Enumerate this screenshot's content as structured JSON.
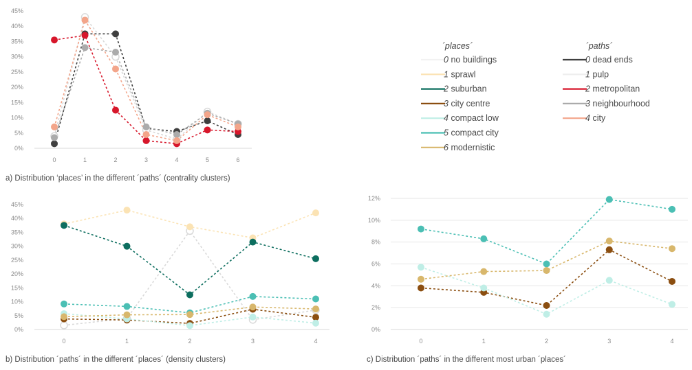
{
  "colors": {
    "no_buildings": "#f2f2f2",
    "sprawl": "#fbe3b4",
    "suburban": "#0d6e5f",
    "city_centre": "#8b4e10",
    "compact_low": "#bfeee6",
    "compact_city": "#4bbfb4",
    "modernistic": "#d8b76c",
    "dead_ends": "#3f3f3f",
    "pulp": "#eeeeee",
    "metropolitan": "#d7172b",
    "neighbourhood": "#ababab",
    "city": "#f3a58a"
  },
  "legend": {
    "places_title": "´places´",
    "paths_title": "´paths´",
    "places": [
      {
        "num": "0",
        "label": "no buildings",
        "color": "#f2f2f2"
      },
      {
        "num": "1",
        "label": "sprawl",
        "color": "#fbe3b4"
      },
      {
        "num": "2",
        "label": "suburban",
        "color": "#0d6e5f"
      },
      {
        "num": "3",
        "label": "city centre",
        "color": "#8b4e10"
      },
      {
        "num": "4",
        "label": "compact low",
        "color": "#bfeee6"
      },
      {
        "num": "5",
        "label": "compact city",
        "color": "#4bbfb4"
      },
      {
        "num": "6",
        "label": "modernistic",
        "color": "#d8b76c"
      }
    ],
    "paths": [
      {
        "num": "0",
        "label": "dead ends",
        "color": "#3f3f3f"
      },
      {
        "num": "1",
        "label": "pulp",
        "color": "#eeeeee"
      },
      {
        "num": "2",
        "label": "metropolitan",
        "color": "#d7172b"
      },
      {
        "num": "3",
        "label": "neighbourhood",
        "color": "#ababab"
      },
      {
        "num": "4",
        "label": "city",
        "color": "#f3a58a"
      }
    ]
  },
  "chart_data": [
    {
      "id": "a",
      "type": "line",
      "title": "a) Distribution ‘places’ in the different ´paths´ (centrality clusters)",
      "x": [
        0,
        1,
        2,
        3,
        4,
        5,
        6
      ],
      "ylim": [
        0,
        45
      ],
      "yticks": [
        0,
        5,
        10,
        15,
        20,
        25,
        30,
        35,
        40,
        45
      ],
      "ytick_labels": [
        "0%",
        "5%",
        "10%",
        "15%",
        "20%",
        "25%",
        "30%",
        "35%",
        "40%",
        "45%"
      ],
      "line_style": "dashed",
      "grid": false,
      "series": [
        {
          "name": "0 dead ends",
          "color": "#3f3f3f",
          "values": [
            1.5,
            37.5,
            37.5,
            6.5,
            5.5,
            9,
            4.5
          ]
        },
        {
          "name": "1 pulp",
          "color": "#d9d9d9",
          "hollow": true,
          "values": [
            4,
            43,
            30,
            6,
            3,
            12,
            8
          ]
        },
        {
          "name": "2 metropolitan",
          "color": "#d7172b",
          "values": [
            35.5,
            37,
            12.5,
            2.5,
            1.5,
            6,
            5.5
          ]
        },
        {
          "name": "3 neighbourhood",
          "color": "#ababab",
          "values": [
            3.5,
            33,
            31.5,
            7,
            4.5,
            11.5,
            8
          ]
        },
        {
          "name": "4 city",
          "color": "#f3a58a",
          "values": [
            7,
            42,
            26,
            4.5,
            2.5,
            11,
            7
          ]
        }
      ]
    },
    {
      "id": "b",
      "type": "line",
      "title": "b) Distribution ´paths´ in the different ´places´ (density clusters)",
      "x": [
        0,
        1,
        2,
        3,
        4
      ],
      "ylim": [
        0,
        45
      ],
      "yticks": [
        0,
        5,
        10,
        15,
        20,
        25,
        30,
        35,
        40,
        45
      ],
      "ytick_labels": [
        "0%",
        "5%",
        "10%",
        "15%",
        "20%",
        "25%",
        "30%",
        "35%",
        "40%",
        "45%"
      ],
      "line_style": "dashed",
      "grid": false,
      "series": [
        {
          "name": "0 no buildings",
          "color": "#d9d9d9",
          "hollow": true,
          "values": [
            1.5,
            4,
            35.5,
            3.5,
            7
          ]
        },
        {
          "name": "1 sprawl",
          "color": "#fbe3b4",
          "values": [
            38,
            43,
            37,
            33,
            42
          ]
        },
        {
          "name": "2 suburban",
          "color": "#0d6e5f",
          "values": [
            37.5,
            30,
            12.5,
            31.5,
            25.5
          ]
        },
        {
          "name": "3 city centre",
          "color": "#8b4e10",
          "values": [
            3.8,
            3.4,
            2.2,
            7.3,
            4.4
          ]
        },
        {
          "name": "4 compact low",
          "color": "#bfeee6",
          "values": [
            5.7,
            3.8,
            1.4,
            4.5,
            2.3
          ]
        },
        {
          "name": "5 compact city",
          "color": "#4bbfb4",
          "values": [
            9.2,
            8.3,
            6,
            11.9,
            11
          ]
        },
        {
          "name": "6 modernistic",
          "color": "#d8b76c",
          "values": [
            4.6,
            5.3,
            5.4,
            8.1,
            7.4
          ]
        }
      ]
    },
    {
      "id": "c",
      "type": "line",
      "title": "c) Distribution ´paths´ in the different most urban ´places´",
      "x": [
        0,
        1,
        2,
        3,
        4
      ],
      "ylim": [
        0,
        12
      ],
      "yticks": [
        0,
        2,
        4,
        6,
        8,
        10,
        12
      ],
      "ytick_labels": [
        "0%",
        "2%",
        "4%",
        "6%",
        "8%",
        "10%",
        "12%"
      ],
      "line_style": "dashed",
      "grid": true,
      "series": [
        {
          "name": "3 city centre",
          "color": "#8b4e10",
          "values": [
            3.8,
            3.4,
            2.2,
            7.3,
            4.4
          ]
        },
        {
          "name": "4 compact low",
          "color": "#bfeee6",
          "values": [
            5.7,
            3.8,
            1.4,
            4.5,
            2.3
          ]
        },
        {
          "name": "5 compact city",
          "color": "#4bbfb4",
          "values": [
            9.2,
            8.3,
            6,
            11.9,
            11
          ]
        },
        {
          "name": "6 modernistic",
          "color": "#d8b76c",
          "values": [
            4.6,
            5.3,
            5.4,
            8.1,
            7.4
          ]
        }
      ]
    }
  ]
}
